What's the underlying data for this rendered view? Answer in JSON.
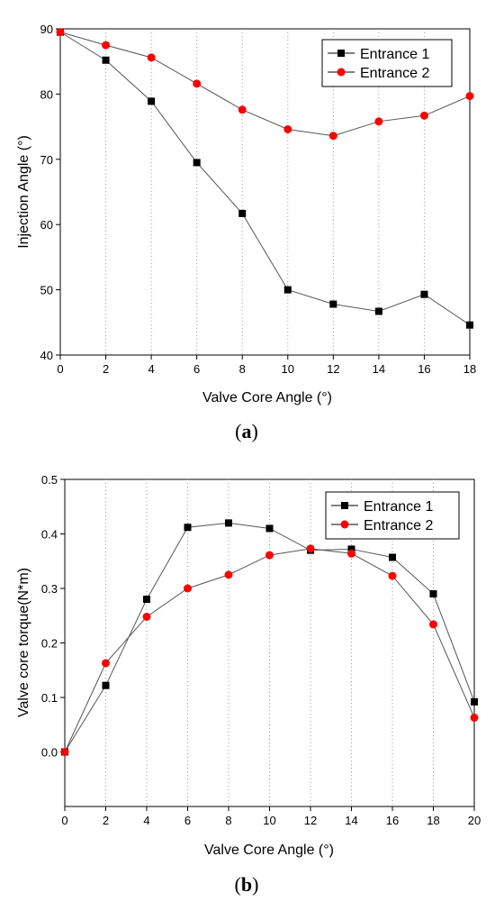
{
  "chart_data": [
    {
      "type": "line",
      "panel_label": "(a)",
      "panel_letter": "a",
      "xlabel": "Valve Core Angle (°)",
      "ylabel": "Injection Angle (°)",
      "xlim": [
        0,
        18
      ],
      "ylim": [
        40,
        90
      ],
      "x_ticks": [
        "0",
        "2",
        "4",
        "6",
        "8",
        "10",
        "12",
        "14",
        "16",
        "18"
      ],
      "y_ticks": [
        "40",
        "50",
        "60",
        "70",
        "80",
        "90"
      ],
      "x_tick_values": [
        0,
        2,
        4,
        6,
        8,
        10,
        12,
        14,
        16,
        18
      ],
      "y_tick_values": [
        40,
        50,
        60,
        70,
        80,
        90
      ],
      "grid": "vertical dotted",
      "legend_position": "top-right",
      "x": [
        0,
        2,
        4,
        6,
        8,
        10,
        12,
        14,
        16,
        18
      ],
      "series": [
        {
          "name": "Entrance 1",
          "marker": "square",
          "color": "#000000",
          "values": [
            89.5,
            85.2,
            78.9,
            69.5,
            61.7,
            50.0,
            47.8,
            46.7,
            49.3,
            44.6
          ]
        },
        {
          "name": "Entrance 2",
          "marker": "circle",
          "color": "#ff0000",
          "values": [
            89.5,
            87.5,
            85.6,
            81.6,
            77.6,
            74.6,
            73.6,
            75.8,
            76.7,
            79.7
          ]
        }
      ]
    },
    {
      "type": "line",
      "panel_label": "(b)",
      "panel_letter": "b",
      "xlabel": "Valve Core Angle (°)",
      "ylabel": "Valve core torque(N*m)",
      "xlim": [
        0,
        20
      ],
      "ylim": [
        -0.1,
        0.5
      ],
      "x_ticks": [
        "0",
        "2",
        "4",
        "6",
        "8",
        "10",
        "12",
        "14",
        "16",
        "18",
        "20"
      ],
      "y_ticks": [
        "0.0",
        "0.1",
        "0.2",
        "0.3",
        "0.4",
        "0.5"
      ],
      "x_tick_values": [
        0,
        2,
        4,
        6,
        8,
        10,
        12,
        14,
        16,
        18,
        20
      ],
      "y_tick_values": [
        0,
        0.1,
        0.2,
        0.3,
        0.4,
        0.5
      ],
      "grid": "vertical dotted",
      "legend_position": "top-right",
      "x": [
        0,
        2,
        4,
        6,
        8,
        10,
        12,
        14,
        16,
        18,
        20
      ],
      "series": [
        {
          "name": "Entrance 1",
          "marker": "square",
          "color": "#000000",
          "values": [
            0.0,
            0.122,
            0.28,
            0.412,
            0.42,
            0.41,
            0.37,
            0.372,
            0.357,
            0.29,
            0.092
          ]
        },
        {
          "name": "Entrance 2",
          "marker": "circle",
          "color": "#ff0000",
          "values": [
            0.0,
            0.163,
            0.248,
            0.3,
            0.325,
            0.361,
            0.373,
            0.364,
            0.323,
            0.234,
            0.063
          ]
        }
      ]
    }
  ]
}
